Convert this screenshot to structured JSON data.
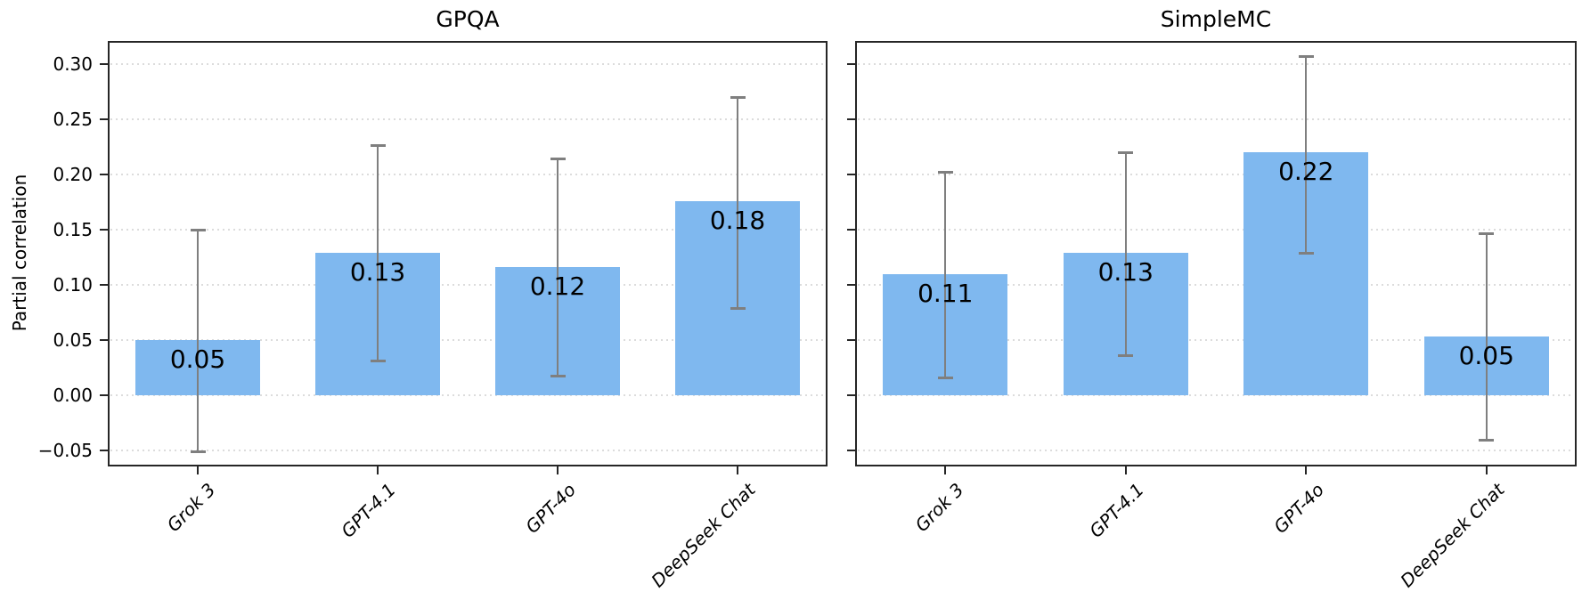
{
  "figure": {
    "background": "#ffffff",
    "ylabel": "Partial correlation",
    "bar_color": "#7FB8EF",
    "error_color": "#7f7f7f",
    "grid_color": "#dcdcdc",
    "spine_color": "#262626",
    "text_color": "#000000",
    "ytick_labels": [
      "0.30",
      "0.25",
      "0.20",
      "0.15",
      "0.10",
      "0.05",
      "0.00",
      "−0.05"
    ],
    "ytick_values": [
      0.3,
      0.25,
      0.2,
      0.15,
      0.1,
      0.05,
      0.0,
      -0.05
    ]
  },
  "chart_data": [
    {
      "type": "bar",
      "title": "GPQA",
      "ylabel": "Partial correlation",
      "xlabel": "",
      "categories": [
        "Grok 3",
        "GPT-4.1",
        "GPT-4o",
        "DeepSeek Chat"
      ],
      "values": [
        0.05,
        0.13,
        0.12,
        0.18
      ],
      "bar_heights": [
        0.05,
        0.129,
        0.116,
        0.176
      ],
      "bar_labels": [
        "0.05",
        "0.13",
        "0.12",
        "0.18"
      ],
      "error_low": [
        -0.051,
        0.031,
        0.017,
        0.079
      ],
      "error_high": [
        0.15,
        0.226,
        0.214,
        0.27
      ],
      "ylim": [
        -0.065,
        0.321
      ],
      "yticks": [
        0.3,
        0.25,
        0.2,
        0.15,
        0.1,
        0.05,
        0.0,
        -0.05
      ],
      "grid": "horizontal dotted",
      "ytick_labels_shown": true,
      "legend": "none"
    },
    {
      "type": "bar",
      "title": "SimpleMC",
      "ylabel": "",
      "xlabel": "",
      "categories": [
        "Grok 3",
        "GPT-4.1",
        "GPT-4o",
        "DeepSeek Chat"
      ],
      "values": [
        0.11,
        0.13,
        0.22,
        0.05
      ],
      "bar_heights": [
        0.11,
        0.129,
        0.22,
        0.053
      ],
      "bar_labels": [
        "0.11",
        "0.13",
        "0.22",
        "0.05"
      ],
      "error_low": [
        0.016,
        0.036,
        0.129,
        -0.041
      ],
      "error_high": [
        0.202,
        0.22,
        0.307,
        0.146
      ],
      "ylim": [
        -0.065,
        0.321
      ],
      "yticks": [
        0.3,
        0.25,
        0.2,
        0.15,
        0.1,
        0.05,
        0.0,
        -0.05
      ],
      "grid": "horizontal dotted",
      "ytick_labels_shown": false,
      "legend": "none"
    }
  ]
}
